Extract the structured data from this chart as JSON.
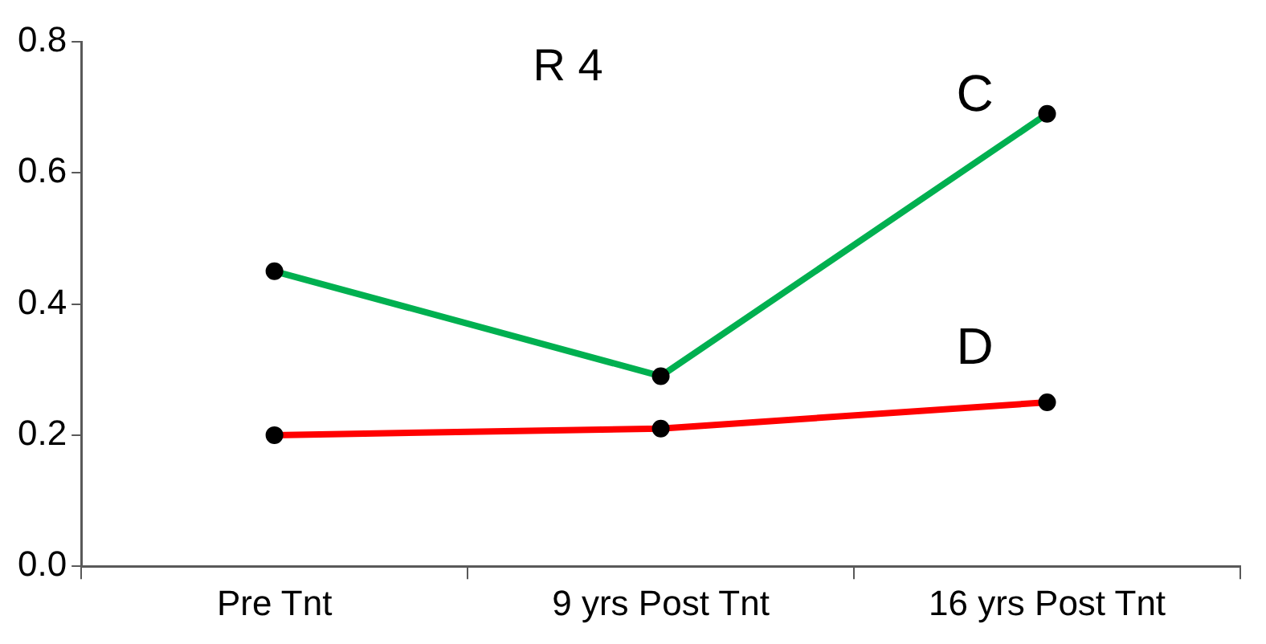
{
  "chart_data": {
    "type": "line",
    "title": "R 4",
    "categories": [
      "Pre Tnt",
      "9 yrs Post Tnt",
      "16 yrs Post Tnt"
    ],
    "series": [
      {
        "name": "C",
        "color": "#00b050",
        "values": [
          0.45,
          0.29,
          0.69
        ]
      },
      {
        "name": "D",
        "color": "#ff0000",
        "values": [
          0.2,
          0.21,
          0.25
        ]
      }
    ],
    "ylim": [
      0,
      0.8
    ],
    "yticks": [
      {
        "value": 0,
        "label": "0.0"
      },
      0.2,
      0.4,
      0.6,
      0.8
    ],
    "grid": false,
    "legend": false,
    "marker": "circle",
    "line_style": "solid"
  }
}
